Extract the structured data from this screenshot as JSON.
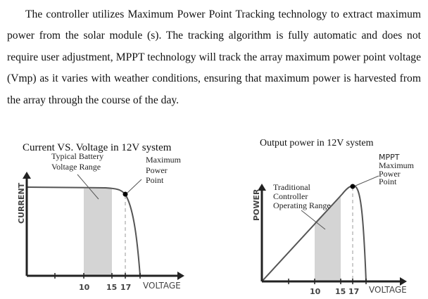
{
  "paragraph": "The controller utilizes Maximum Power Point Tracking technology to extract maximum power from the solar module (s). The tracking algorithm is fully automatic and does not require user adjustment, MPPT technology will track the array maximum power point voltage (Vmp) as it varies with weather conditions, ensuring that maximum power is harvested from the array through the course of the day.",
  "left_chart": {
    "title": "Current VS. Voltage in 12V system",
    "ylabel": "CURRENT",
    "xlabel": "VOLTAGE",
    "ticks": [
      "10",
      "15",
      "17"
    ],
    "range_label": [
      "Typical Battery",
      "Voltage Range"
    ],
    "mpp_label": [
      "Maximum",
      "Power",
      "Point"
    ]
  },
  "right_chart": {
    "title": "Output power in 12V system",
    "ylabel": "POWER",
    "xlabel": "VOLTAGE",
    "ticks": [
      "10",
      "15",
      "17"
    ],
    "range_label": [
      "Traditional",
      "Controller",
      "Operating Range"
    ],
    "mpp_label": [
      "MPPT",
      "Maximum",
      "Power",
      "Point"
    ]
  }
}
